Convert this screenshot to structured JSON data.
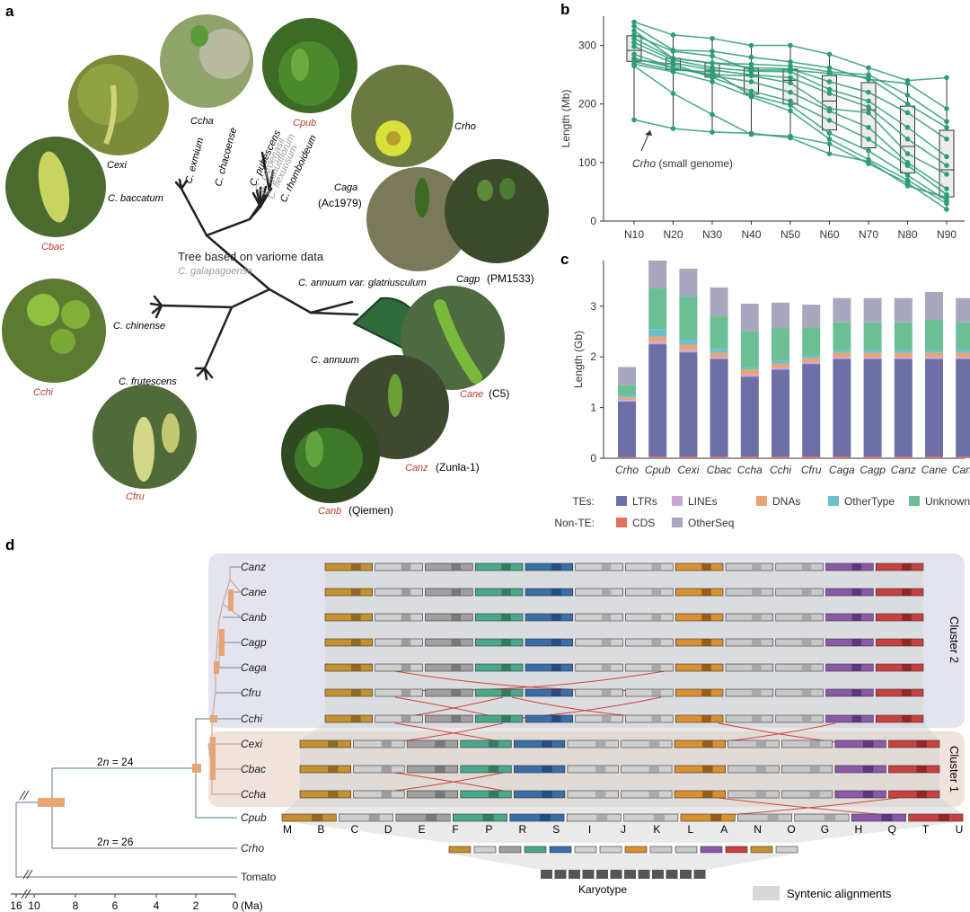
{
  "panel_labels": [
    "a",
    "b",
    "c",
    "d"
  ],
  "panel_a": {
    "tree_title": "Tree based on variome data",
    "leaves": [
      {
        "name": "C. exmium",
        "col": "black"
      },
      {
        "name": "C. chacoense",
        "col": "black"
      },
      {
        "name": "C. pubescens",
        "col": "black"
      },
      {
        "name": "C. cardenasii",
        "col": "grey"
      },
      {
        "name": "C. minutiflorum",
        "col": "grey"
      },
      {
        "name": "C. flexuosum",
        "col": "grey"
      },
      {
        "name": "C. rhomboideum",
        "col": "black"
      },
      {
        "name": "C. baccatum",
        "col": "black"
      },
      {
        "name": "C. galapagoense",
        "col": "grey"
      },
      {
        "name": "C. chinense",
        "col": "black"
      },
      {
        "name": "C. frutescens",
        "col": "black"
      },
      {
        "name": "C. annuum var. glatriusculum",
        "col": "black"
      },
      {
        "name": "C. annuum",
        "col": "black"
      }
    ],
    "photos": [
      {
        "code": "Cexi",
        "red": false,
        "extra": ""
      },
      {
        "code": "Ccha",
        "red": false,
        "extra": ""
      },
      {
        "code": "Cpub",
        "red": true,
        "extra": ""
      },
      {
        "code": "Crho",
        "red": false,
        "extra": ""
      },
      {
        "code": "Cbac",
        "red": true,
        "extra": ""
      },
      {
        "code": "Caga",
        "red": false,
        "extra": "(Ac1979)"
      },
      {
        "code": "Cagp",
        "red": false,
        "extra": "(PM1533)"
      },
      {
        "code": "Cchi",
        "red": true,
        "extra": ""
      },
      {
        "code": "Cane",
        "red": true,
        "extra": "(C5)"
      },
      {
        "code": "Canz",
        "red": true,
        "extra": "(Zunla-1)"
      },
      {
        "code": "Cfru",
        "red": true,
        "extra": ""
      },
      {
        "code": "Canb",
        "red": true,
        "extra": "(Qiemen)"
      }
    ]
  },
  "panel_b": {
    "chart_data": {
      "type": "line",
      "ylabel": "Length (Mb)",
      "categories": [
        "N10",
        "N20",
        "N30",
        "N40",
        "N50",
        "N60",
        "N70",
        "N80",
        "N90"
      ],
      "ylim": [
        0,
        350
      ],
      "yticks": [
        0,
        100,
        200,
        300
      ],
      "annotation": "Crho (small genome)",
      "annotation_code": "Crho",
      "annotation_rest": " (small genome)",
      "color": "#2e9c7a",
      "series": [
        {
          "values": [
            340,
            318,
            312,
            300,
            300,
            285,
            262,
            240,
            245
          ]
        },
        {
          "values": [
            333,
            292,
            290,
            280,
            272,
            262,
            242,
            235,
            192
          ]
        },
        {
          "values": [
            325,
            278,
            270,
            268,
            265,
            255,
            250,
            215,
            170
          ]
        },
        {
          "values": [
            318,
            290,
            282,
            258,
            258,
            252,
            245,
            200,
            160
          ]
        },
        {
          "values": [
            312,
            278,
            270,
            262,
            260,
            238,
            220,
            185,
            140
          ]
        },
        {
          "values": [
            305,
            275,
            262,
            256,
            255,
            225,
            205,
            160,
            110
          ]
        },
        {
          "values": [
            298,
            270,
            258,
            250,
            245,
            218,
            195,
            140,
            95
          ]
        },
        {
          "values": [
            285,
            262,
            250,
            248,
            236,
            192,
            185,
            115,
            80
          ]
        },
        {
          "values": [
            278,
            262,
            248,
            238,
            220,
            188,
            160,
            100,
            55
          ]
        },
        {
          "values": [
            275,
            268,
            245,
            222,
            205,
            172,
            140,
            95,
            45
          ]
        },
        {
          "values": [
            272,
            258,
            255,
            215,
            198,
            150,
            120,
            78,
            35
          ]
        },
        {
          "values": [
            268,
            255,
            238,
            212,
            188,
            140,
            105,
            70,
            30
          ]
        },
        {
          "values": [
            265,
            218,
            182,
            148,
            145,
            132,
            98,
            65,
            20
          ]
        },
        {
          "values": [
            173,
            158,
            152,
            150,
            142,
            115,
            102,
            60,
            40
          ]
        }
      ]
    }
  },
  "panel_c": {
    "chart_data": {
      "type": "bar",
      "ylabel": "Length (Gb)",
      "categories": [
        "Crho",
        "Cpub",
        "Cexi",
        "Cbac",
        "Ccha",
        "Cchi",
        "Cfru",
        "Caga",
        "Cagp",
        "Canz",
        "Cane",
        "Canb"
      ],
      "ylim": [
        0,
        3.9
      ],
      "yticks": [
        0,
        1,
        2,
        3
      ],
      "series": [
        {
          "name": "CDS",
          "color": "#e07060",
          "values": [
            0.02,
            0.03,
            0.03,
            0.03,
            0.03,
            0.03,
            0.03,
            0.03,
            0.03,
            0.03,
            0.03,
            0.03
          ]
        },
        {
          "name": "LTRs",
          "color": "#6e6fa6",
          "values": [
            1.1,
            2.22,
            2.06,
            1.93,
            1.58,
            1.72,
            1.83,
            1.93,
            1.93,
            1.93,
            1.93,
            1.93
          ]
        },
        {
          "name": "LINEs",
          "color": "#c9a8d8",
          "values": [
            0.03,
            0.05,
            0.05,
            0.04,
            0.04,
            0.04,
            0.04,
            0.04,
            0.04,
            0.04,
            0.04,
            0.04
          ]
        },
        {
          "name": "DNAs",
          "color": "#e8a472",
          "values": [
            0.05,
            0.1,
            0.1,
            0.08,
            0.1,
            0.08,
            0.08,
            0.08,
            0.08,
            0.08,
            0.08,
            0.08
          ]
        },
        {
          "name": "OtherType",
          "color": "#6cc0cc",
          "values": [
            0.05,
            0.15,
            0.1,
            0.07,
            0.05,
            0.05,
            0.05,
            0.05,
            0.05,
            0.05,
            0.05,
            0.05
          ]
        },
        {
          "name": "Unknown",
          "color": "#6cbf95",
          "values": [
            0.2,
            0.8,
            0.85,
            0.65,
            0.7,
            0.65,
            0.55,
            0.55,
            0.55,
            0.55,
            0.6,
            0.55
          ]
        },
        {
          "name": "OtherSeq",
          "color": "#a7a8bd",
          "values": [
            0.35,
            0.55,
            0.55,
            0.57,
            0.55,
            0.5,
            0.45,
            0.48,
            0.48,
            0.48,
            0.55,
            0.48
          ]
        }
      ],
      "legend_rows": [
        {
          "head": "TEs:",
          "items": [
            "LTRs",
            "LINEs",
            "DNAs",
            "OtherType",
            "Unknown"
          ]
        },
        {
          "head": "Non-TE:",
          "items": [
            "CDS",
            "OtherSeq"
          ]
        }
      ]
    }
  },
  "panel_d": {
    "genomes": [
      {
        "code": "Canz",
        "red": false
      },
      {
        "code": "Cane",
        "red": false
      },
      {
        "code": "Canb",
        "red": false
      },
      {
        "code": "Cagp",
        "red": false
      },
      {
        "code": "Caga",
        "red": false
      },
      {
        "code": "Cfru",
        "red": false
      },
      {
        "code": "Cchi",
        "red": false
      },
      {
        "code": "Cexi",
        "red": false
      },
      {
        "code": "Cbac",
        "red": false
      },
      {
        "code": "Ccha",
        "red": false
      },
      {
        "code": "Cpub",
        "red": false
      },
      {
        "code": "Crho",
        "red": false
      },
      {
        "code": "Tomato",
        "red": false
      }
    ],
    "cluster_labels": [
      "Cluster 2",
      "Cluster 1"
    ],
    "branch_labels": [
      {
        "pre": "2",
        "it": "n",
        "post": " = 24"
      },
      {
        "pre": "2",
        "it": "n",
        "post": " = 26"
      }
    ],
    "karyotype_letters": [
      "M",
      "B",
      "C",
      "D",
      "E",
      "F",
      "P",
      "R",
      "S",
      "I",
      "J",
      "K",
      "L",
      "A",
      "N",
      "O",
      "G",
      "H",
      "Q",
      "T",
      "U"
    ],
    "axis_ticks": [
      "16",
      "10",
      "8",
      "6",
      "4",
      "2",
      "0"
    ],
    "axis_unit": "(Ma)",
    "karyotype_label": "Karyotype",
    "legend_label": "Syntenic alignments"
  }
}
